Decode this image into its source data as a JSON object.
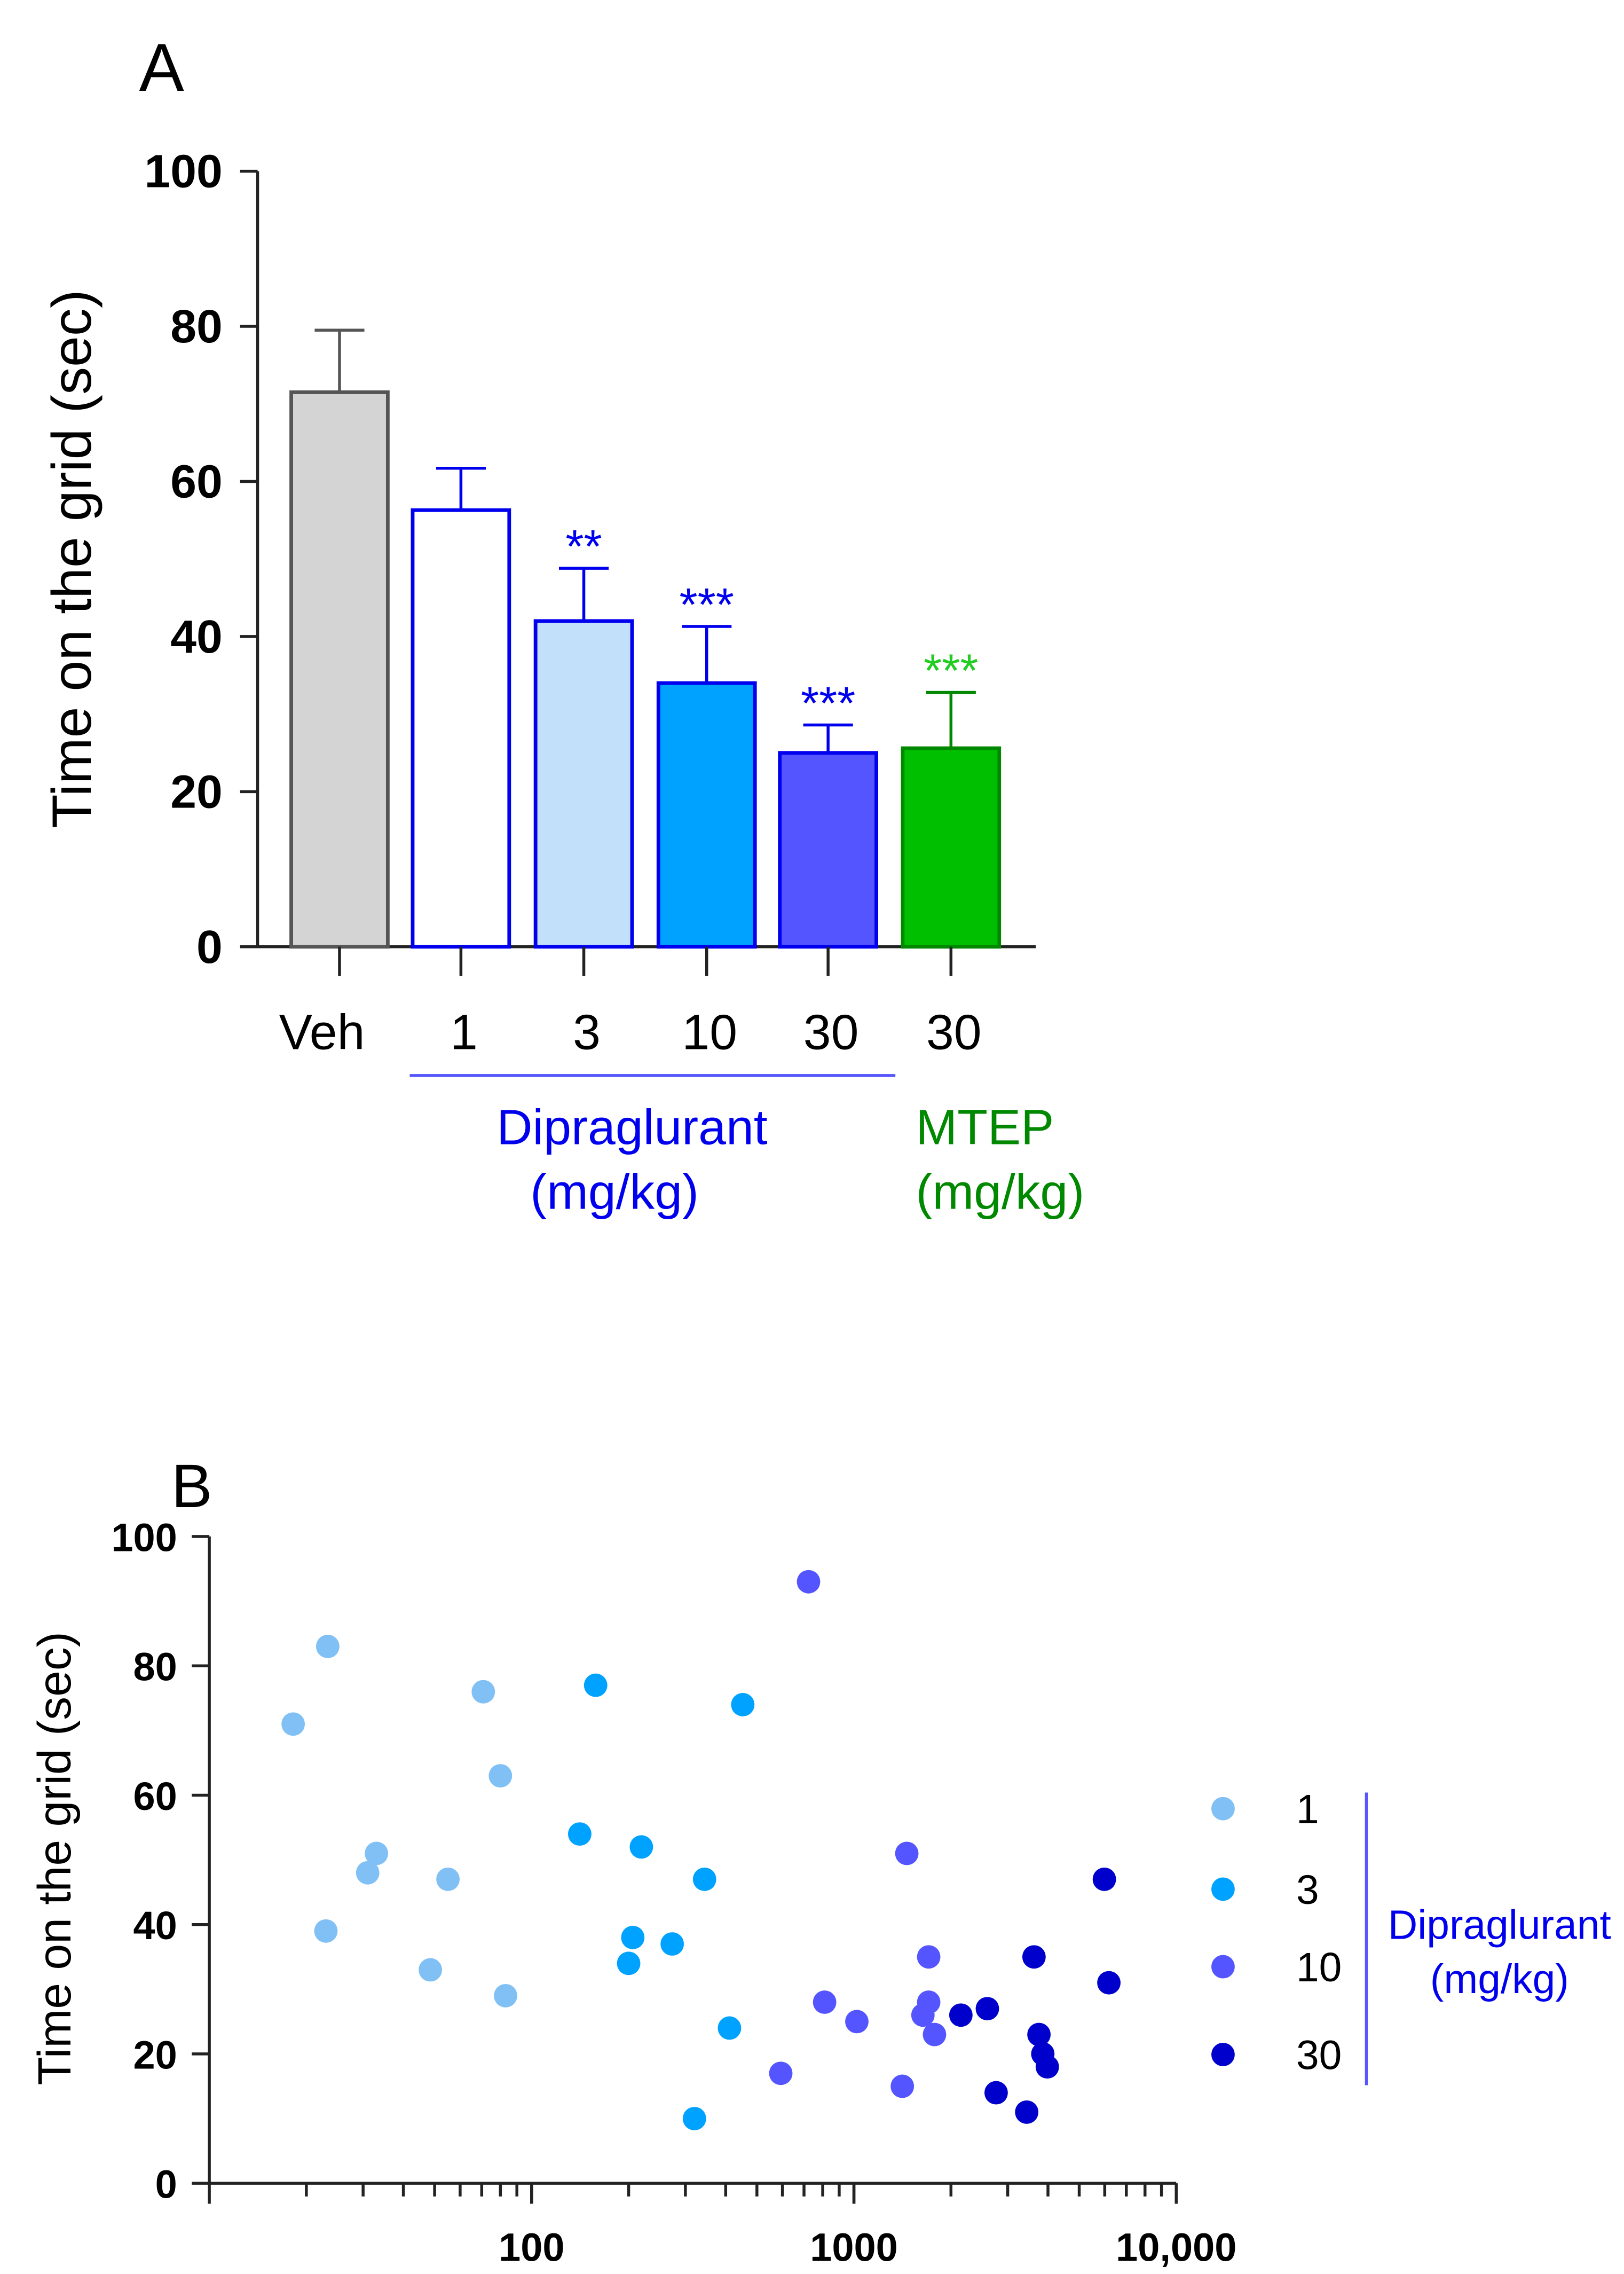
{
  "chart_data": [
    {
      "panel": "A",
      "type": "bar",
      "ylabel": "Time on the grid (sec)",
      "ylim": [
        0,
        100
      ],
      "yticks": [
        "0",
        "20",
        "40",
        "60",
        "80",
        "100"
      ],
      "categories": [
        "Veh",
        "1",
        "3",
        "10",
        "30",
        "30"
      ],
      "values": [
        71.5,
        56.3,
        42.0,
        34.0,
        25.0,
        25.6
      ],
      "error_upper": [
        79.5,
        61.7,
        48.8,
        41.3,
        28.6,
        32.8
      ],
      "significance": [
        "",
        "",
        "**",
        "***",
        "***",
        "***"
      ],
      "fill_colors": [
        "#d4d4d4",
        "#ffffff",
        "#c2e0fa",
        "#00a2ff",
        "#5555ff",
        "#00bf00"
      ],
      "stroke_colors": [
        "#555555",
        "#0000ee",
        "#0000ee",
        "#0000ee",
        "#0000ee",
        "#008800"
      ],
      "star_colors": [
        "",
        "",
        "#0000ee",
        "#0000ee",
        "#0000ee",
        "#22cc22"
      ],
      "groups": [
        {
          "line1": "Dipraglurant",
          "line2": "(mg/kg)",
          "color": "#0000ee"
        },
        {
          "line1": "MTEP",
          "line2": "(mg/kg)",
          "color": "#008800"
        }
      ]
    },
    {
      "panel": "B",
      "type": "scatter",
      "ylabel": "Time on the grid (sec)",
      "ylim": [
        0,
        100
      ],
      "yticks": [
        "0",
        "20",
        "40",
        "60",
        "80",
        "100"
      ],
      "xscale": "log",
      "xlim": [
        10,
        10000
      ],
      "xticks": [
        "100",
        "1000",
        "10,000"
      ],
      "legend_title": [
        "Dipraglurant",
        "(mg/kg)"
      ],
      "legend_placement": "right",
      "series": [
        {
          "name": "1",
          "color": "#80c0f5",
          "points": [
            [
              18.2,
              71
            ],
            [
              23.3,
              83
            ],
            [
              31,
              48
            ],
            [
              33,
              51
            ],
            [
              23,
              39
            ],
            [
              48.5,
              33
            ],
            [
              55,
              47
            ],
            [
              70.8,
              76
            ],
            [
              80,
              63
            ],
            [
              83,
              29
            ]
          ]
        },
        {
          "name": "3",
          "color": "#00a2ff",
          "points": [
            [
              158,
              77
            ],
            [
              452,
              74
            ],
            [
              141,
              54
            ],
            [
              219,
              52
            ],
            [
              344,
              47
            ],
            [
              206,
              38
            ],
            [
              273,
              37
            ],
            [
              200,
              34
            ],
            [
              411,
              24
            ],
            [
              320,
              10
            ]
          ]
        },
        {
          "name": "10",
          "color": "#5555ff",
          "points": [
            [
              723,
              93
            ],
            [
              1459,
              51
            ],
            [
              1706,
              35
            ],
            [
              811,
              28
            ],
            [
              1021,
              25
            ],
            [
              1706,
              28
            ],
            [
              1637,
              26
            ],
            [
              1778,
              23
            ],
            [
              593,
              17
            ],
            [
              1413,
              15
            ]
          ]
        },
        {
          "name": "30",
          "color": "#0000cc",
          "points": [
            [
              5984,
              47
            ],
            [
              6180,
              31
            ],
            [
              3620,
              35
            ],
            [
              3750,
              23
            ],
            [
              3855,
              20
            ],
            [
              3981,
              18
            ],
            [
              2594,
              27
            ],
            [
              2147,
              26
            ],
            [
              2762,
              14
            ],
            [
              3436,
              11
            ]
          ]
        }
      ]
    }
  ],
  "panel_labels": [
    "A",
    "B"
  ]
}
